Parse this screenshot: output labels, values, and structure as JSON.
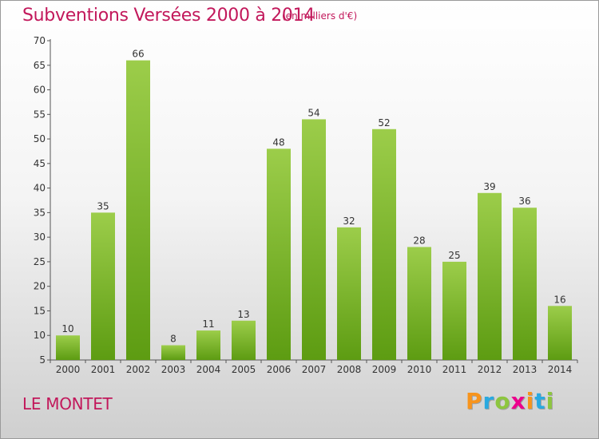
{
  "chart_data": {
    "type": "bar",
    "title": "Subventions Versées 2000 à 2014",
    "subtitle": "(en milliers d'€)",
    "categories": [
      "2000",
      "2001",
      "2002",
      "2003",
      "2004",
      "2005",
      "2006",
      "2007",
      "2008",
      "2009",
      "2010",
      "2011",
      "2012",
      "2013",
      "2014"
    ],
    "values": [
      10,
      35,
      66,
      8,
      11,
      13,
      48,
      54,
      32,
      52,
      28,
      25,
      39,
      36,
      16
    ],
    "ylim": [
      5,
      70
    ],
    "yticks": [
      5,
      10,
      15,
      20,
      25,
      30,
      35,
      40,
      45,
      50,
      55,
      60,
      65,
      70
    ],
    "grid": false,
    "bar_color_top": "#9ccd4a",
    "bar_color_bottom": "#5d9c12"
  },
  "commune": "LE MONTET",
  "logo": {
    "letters": [
      "P",
      "r",
      "o",
      "x",
      "i",
      "t",
      "i"
    ],
    "colors": [
      "#f7941d",
      "#29a9e0",
      "#8dc63f",
      "#ec008c",
      "#f7941d",
      "#29a9e0",
      "#8dc63f"
    ]
  },
  "accent_color": "#c2185b"
}
